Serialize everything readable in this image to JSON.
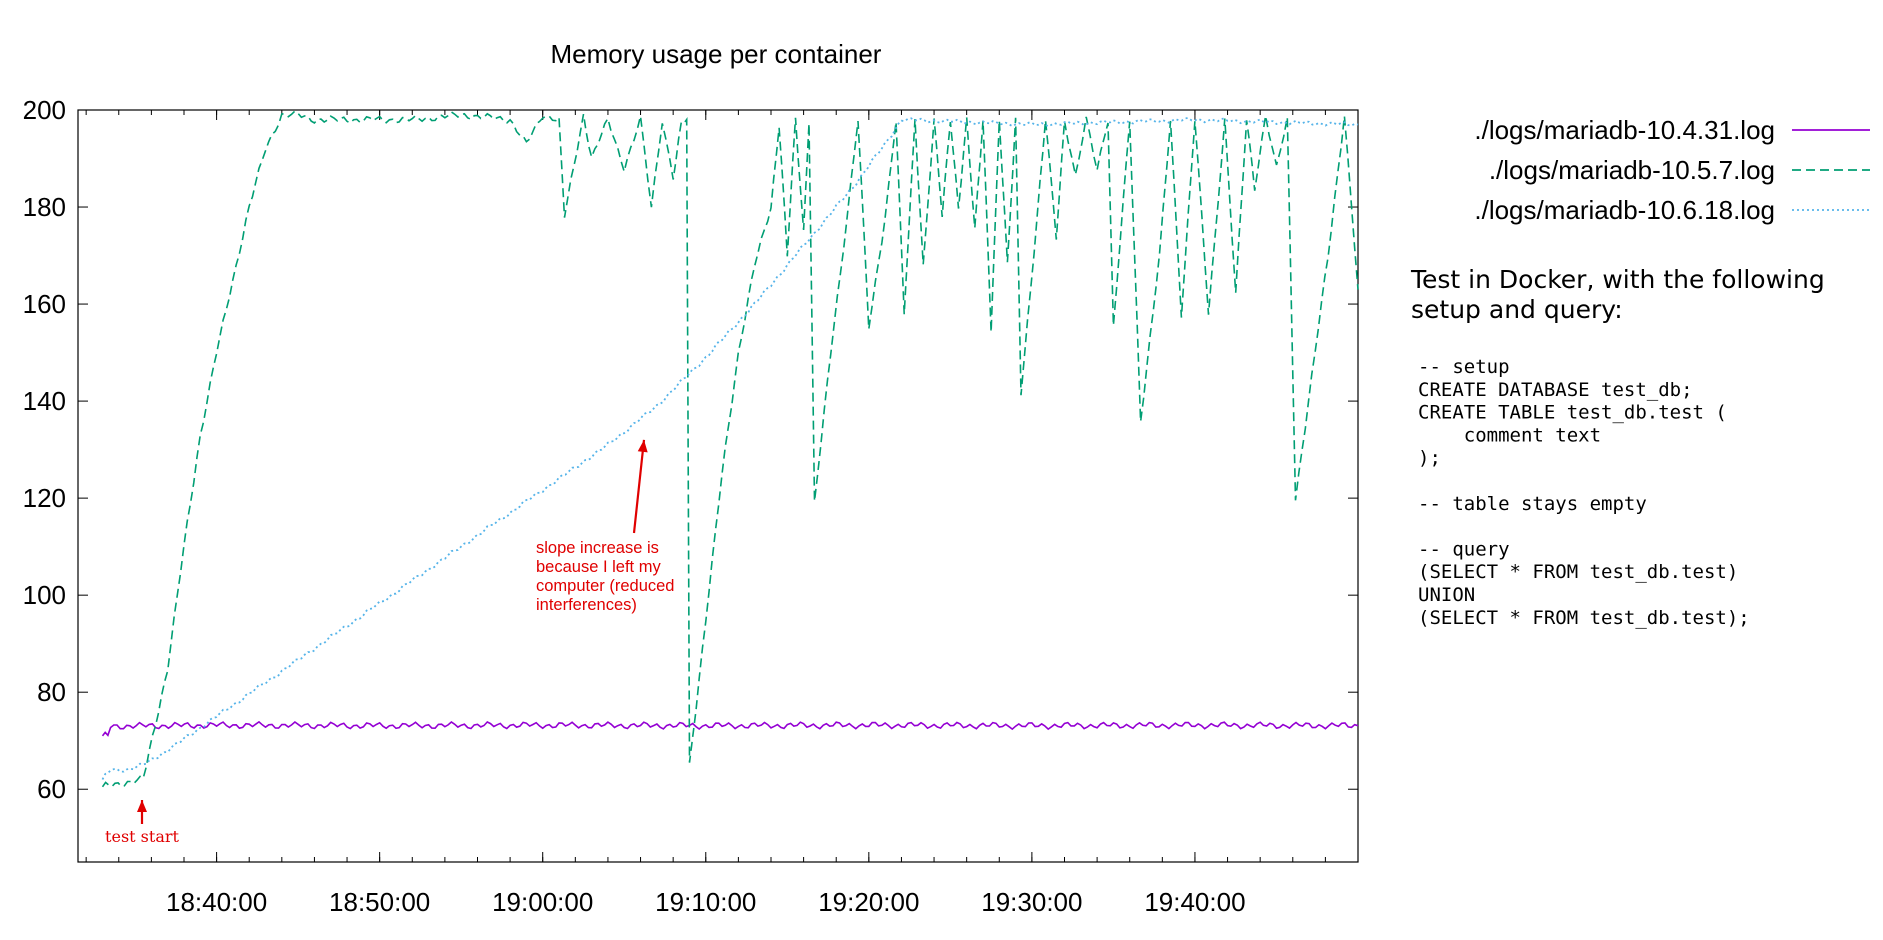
{
  "chart_data": {
    "type": "line",
    "title": "Memory usage per container",
    "xlabel": "",
    "ylabel": "",
    "xlim": [
      "18:31:30",
      "19:50:00"
    ],
    "ylim": [
      45,
      200
    ],
    "y_ticks": [
      60,
      80,
      100,
      120,
      140,
      160,
      180,
      200
    ],
    "x_ticks": [
      "18:40:00",
      "18:50:00",
      "19:00:00",
      "19:10:00",
      "19:20:00",
      "19:30:00",
      "19:40:00"
    ],
    "grid": false,
    "legend_position": "top-right (outside plot)",
    "series": [
      {
        "name": "./logs/mariadb-10.4.31.log",
        "color": "#9400d3",
        "dash": "solid",
        "points": [
          [
            "18:33:00",
            71
          ],
          [
            "18:33:20",
            71
          ],
          [
            "18:33:30",
            73
          ],
          [
            "18:40:00",
            73.2
          ],
          [
            "18:50:00",
            73.1
          ],
          [
            "19:00:00",
            73.2
          ],
          [
            "19:10:00",
            73.1
          ],
          [
            "19:20:00",
            73.2
          ],
          [
            "19:30:00",
            73.1
          ],
          [
            "19:40:00",
            73.2
          ],
          [
            "19:50:00",
            73.1
          ]
        ]
      },
      {
        "name": "./logs/mariadb-10.5.7.log",
        "color": "#009e73",
        "dash": "dashed",
        "points": [
          [
            "18:33:00",
            60.5
          ],
          [
            "18:35:30",
            62
          ],
          [
            "18:37:00",
            85
          ],
          [
            "18:38:00",
            110
          ],
          [
            "18:39:00",
            133
          ],
          [
            "18:40:00",
            150
          ],
          [
            "18:41:00",
            165
          ],
          [
            "18:42:00",
            180
          ],
          [
            "18:43:00",
            192
          ],
          [
            "18:44:00",
            199
          ],
          [
            "18:45:00",
            199
          ],
          [
            "18:46:00",
            198
          ],
          [
            "18:48:00",
            198
          ],
          [
            "18:52:00",
            198
          ],
          [
            "18:55:00",
            199
          ],
          [
            "18:58:00",
            198
          ],
          [
            "18:59:00",
            193
          ],
          [
            "19:00:00",
            199
          ],
          [
            "19:01:00",
            198
          ],
          [
            "19:01:20",
            178
          ],
          [
            "19:02:30",
            199
          ],
          [
            "19:03:00",
            190
          ],
          [
            "19:04:00",
            198
          ],
          [
            "19:05:00",
            188
          ],
          [
            "19:06:00",
            198
          ],
          [
            "19:06:40",
            180
          ],
          [
            "19:07:20",
            198
          ],
          [
            "19:08:00",
            186
          ],
          [
            "19:08:30",
            197
          ],
          [
            "19:08:50",
            198
          ],
          [
            "19:09:00",
            65
          ],
          [
            "19:10:00",
            95
          ],
          [
            "19:11:00",
            125
          ],
          [
            "19:12:00",
            150
          ],
          [
            "19:13:00",
            168
          ],
          [
            "19:14:00",
            180
          ],
          [
            "19:14:30",
            197
          ],
          [
            "19:15:00",
            170
          ],
          [
            "19:15:30",
            198
          ],
          [
            "19:16:00",
            175
          ],
          [
            "19:16:20",
            198
          ],
          [
            "19:16:40",
            119
          ],
          [
            "19:17:40",
            150
          ],
          [
            "19:18:40",
            178
          ],
          [
            "19:19:20",
            198
          ],
          [
            "19:20:00",
            155
          ],
          [
            "19:21:00",
            178
          ],
          [
            "19:21:40",
            198
          ],
          [
            "19:22:10",
            158
          ],
          [
            "19:22:50",
            198
          ],
          [
            "19:23:20",
            168
          ],
          [
            "19:24:00",
            198
          ],
          [
            "19:24:30",
            178
          ],
          [
            "19:25:00",
            198
          ],
          [
            "19:25:30",
            180
          ],
          [
            "19:26:00",
            198
          ],
          [
            "19:26:30",
            175
          ],
          [
            "19:27:00",
            198
          ],
          [
            "19:27:30",
            155
          ],
          [
            "19:28:00",
            198
          ],
          [
            "19:28:30",
            168
          ],
          [
            "19:29:00",
            198
          ],
          [
            "19:29:20",
            142
          ],
          [
            "19:30:20",
            178
          ],
          [
            "19:30:50",
            198
          ],
          [
            "19:31:30",
            174
          ],
          [
            "19:32:00",
            198
          ],
          [
            "19:32:40",
            186
          ],
          [
            "19:33:20",
            198
          ],
          [
            "19:34:00",
            188
          ],
          [
            "19:34:40",
            198
          ],
          [
            "19:35:00",
            155
          ],
          [
            "19:36:00",
            198
          ],
          [
            "19:36:40",
            136
          ],
          [
            "19:37:50",
            170
          ],
          [
            "19:38:30",
            198
          ],
          [
            "19:39:10",
            158
          ],
          [
            "19:40:00",
            198
          ],
          [
            "19:40:50",
            158
          ],
          [
            "19:41:50",
            198
          ],
          [
            "19:42:30",
            162
          ],
          [
            "19:43:10",
            198
          ],
          [
            "19:43:40",
            184
          ],
          [
            "19:44:20",
            199
          ],
          [
            "19:45:00",
            188
          ],
          [
            "19:45:40",
            198
          ],
          [
            "19:46:10",
            120
          ],
          [
            "19:47:10",
            145
          ],
          [
            "19:48:10",
            170
          ],
          [
            "19:49:10",
            199
          ],
          [
            "19:50:00",
            163
          ]
        ]
      },
      {
        "name": "./logs/mariadb-10.6.18.log",
        "color": "#56b4e9",
        "dash": "dotted",
        "points": [
          [
            "18:33:00",
            62
          ],
          [
            "18:33:30",
            64
          ],
          [
            "18:34:30",
            64
          ],
          [
            "18:35:30",
            65
          ],
          [
            "18:37:00",
            68
          ],
          [
            "18:40:00",
            75
          ],
          [
            "18:43:00",
            82
          ],
          [
            "18:46:00",
            89
          ],
          [
            "18:49:00",
            96
          ],
          [
            "18:52:00",
            103
          ],
          [
            "18:55:00",
            110
          ],
          [
            "18:58:00",
            117
          ],
          [
            "19:01:00",
            124
          ],
          [
            "19:04:00",
            131
          ],
          [
            "19:07:00",
            139
          ],
          [
            "19:10:00",
            149
          ],
          [
            "19:13:00",
            160
          ],
          [
            "19:16:00",
            172
          ],
          [
            "19:19:00",
            184
          ],
          [
            "19:21:00",
            193
          ],
          [
            "19:22:00",
            198
          ],
          [
            "19:30:00",
            197
          ],
          [
            "19:40:00",
            198
          ],
          [
            "19:50:00",
            197
          ]
        ]
      }
    ],
    "annotations": [
      {
        "text": [
          "slope increase is",
          "because I left my",
          "computer (reduced",
          "interferences)"
        ],
        "arrow_to": [
          "19:05:20",
          132
        ],
        "color": "#e00000"
      },
      {
        "text": [
          "test start"
        ],
        "arrow_to": [
          "18:34:20",
          60
        ],
        "color": "#e00000"
      }
    ]
  },
  "side_note": {
    "heading": [
      "Test in Docker, with the following",
      "setup and query:"
    ],
    "code": [
      "-- setup",
      "CREATE DATABASE test_db;",
      "CREATE TABLE test_db.test (",
      "    comment text",
      ");",
      "",
      "-- table stays empty",
      "",
      "-- query",
      "(SELECT * FROM test_db.test)",
      "UNION",
      "(SELECT * FROM test_db.test);"
    ]
  }
}
